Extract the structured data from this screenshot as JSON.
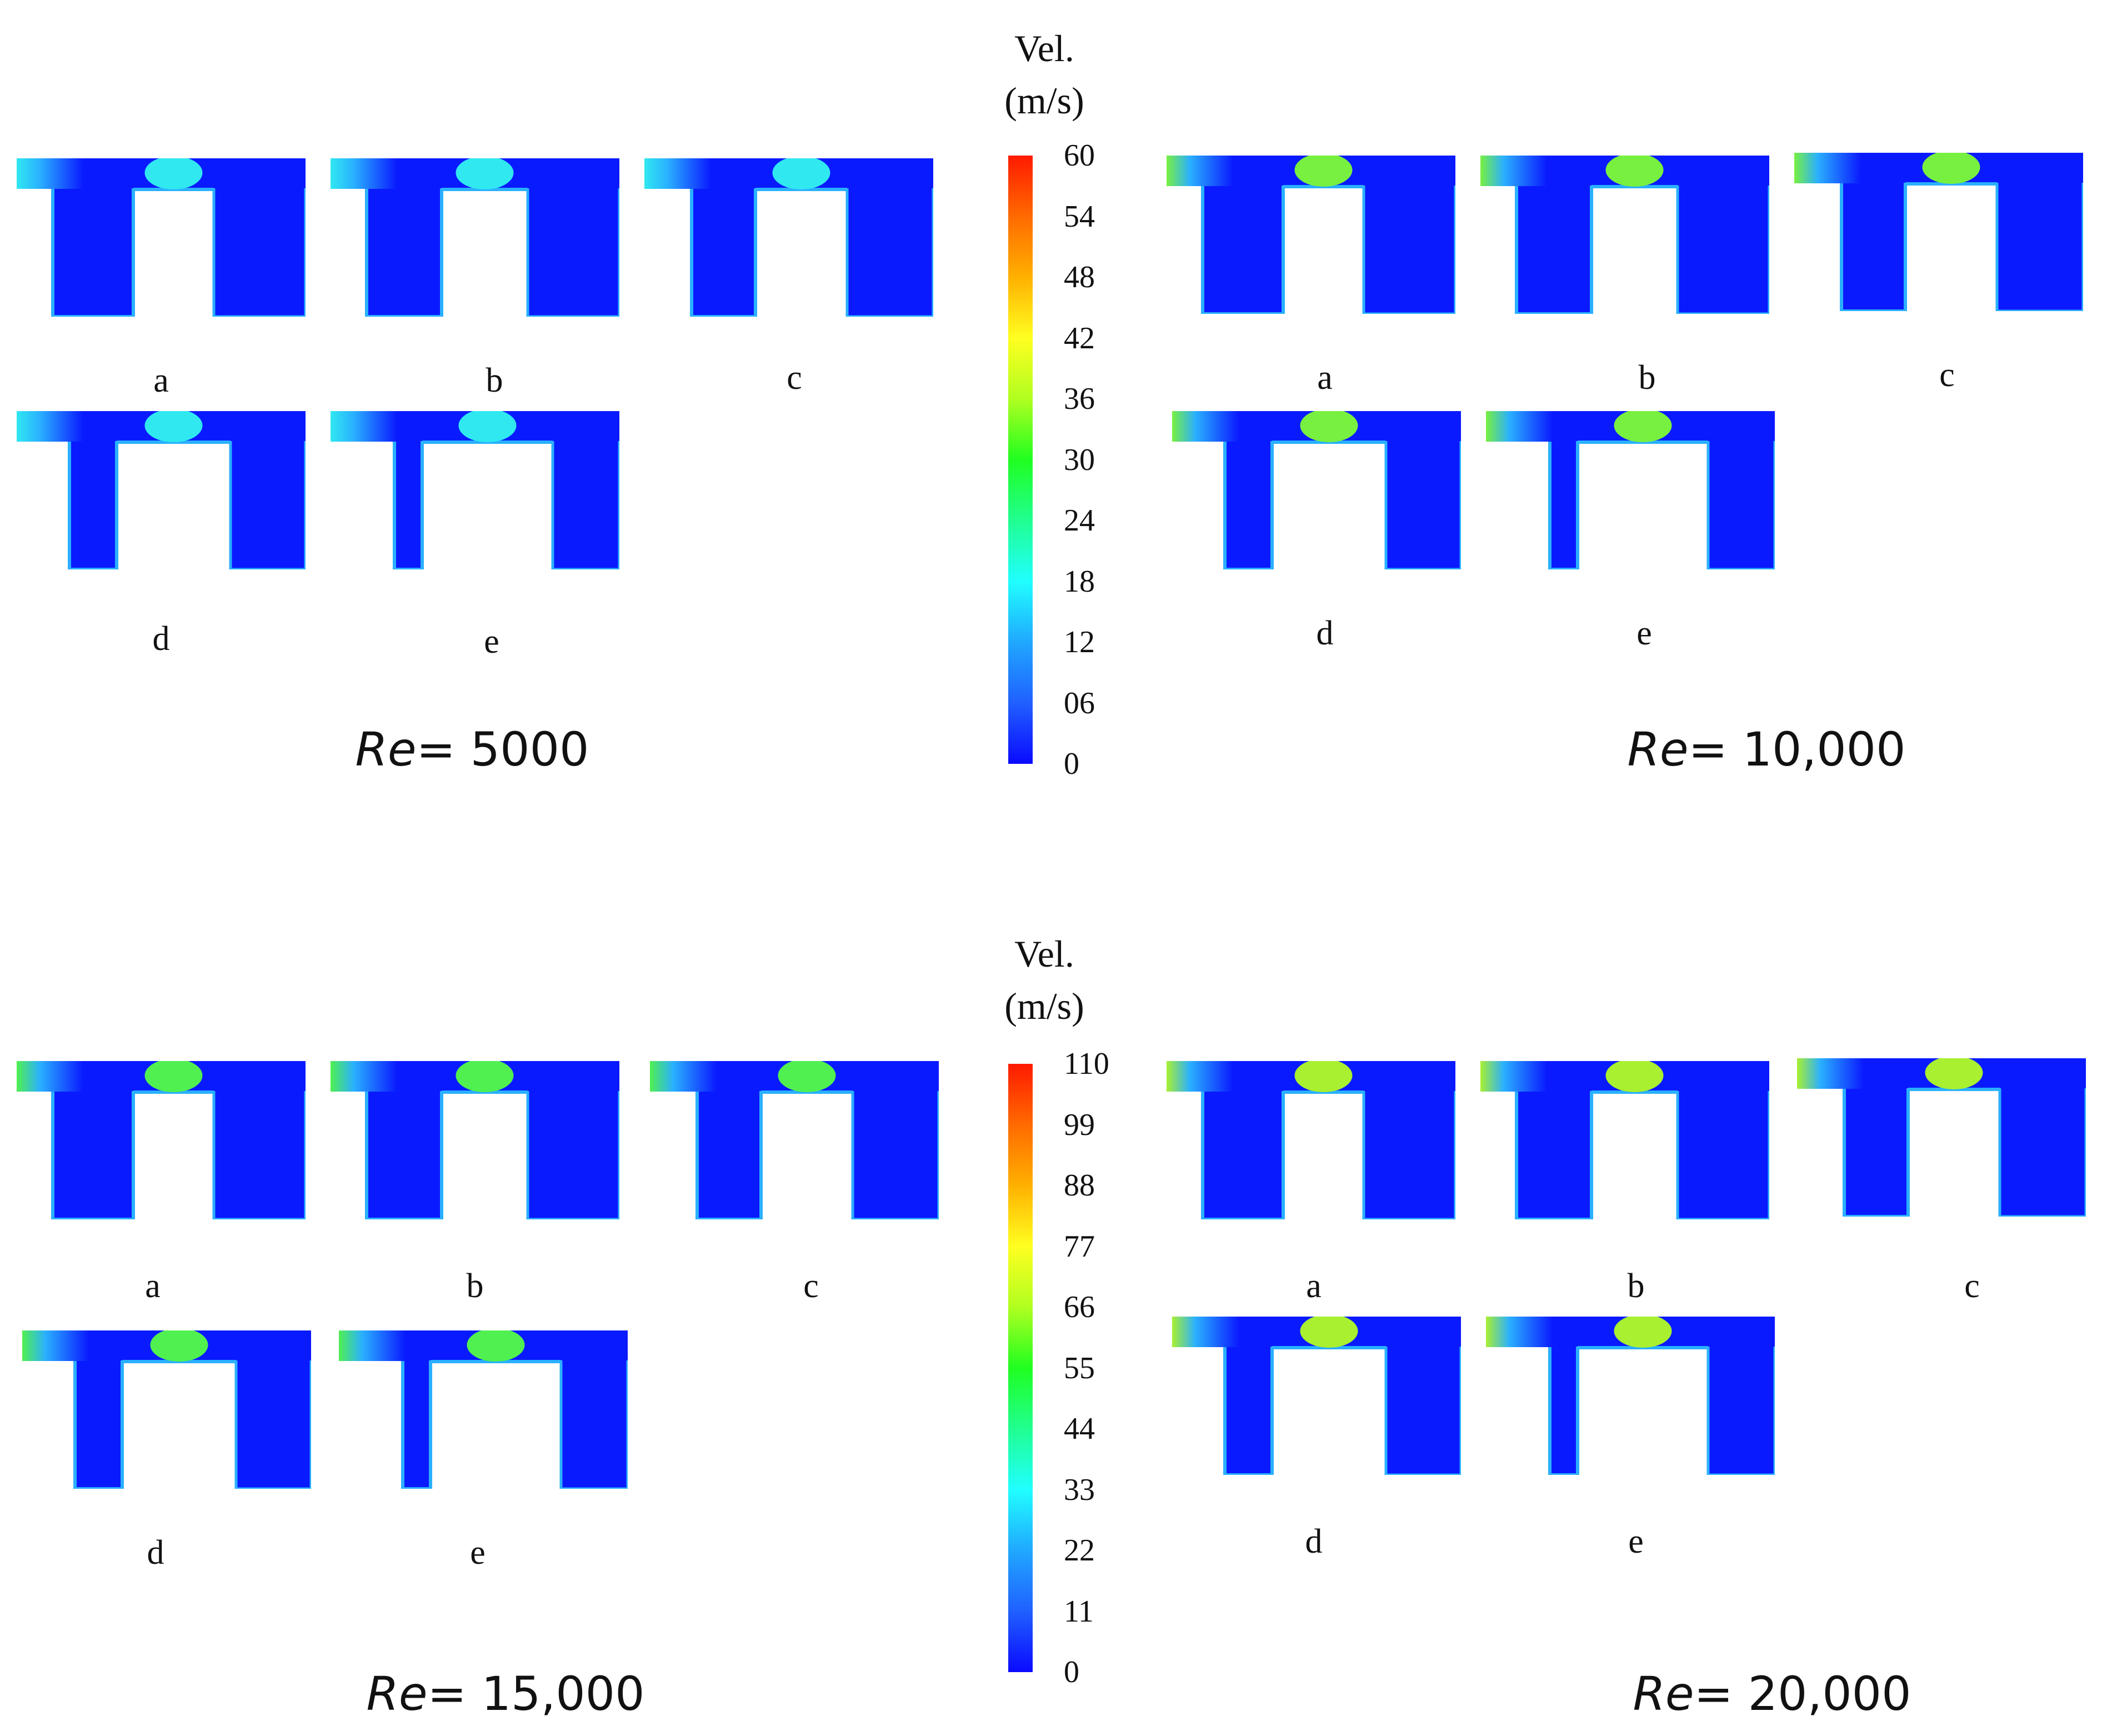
{
  "colorbars": [
    {
      "title_line1": "Vel.",
      "title_line2": "(m/s)",
      "ticks": [
        "60",
        "54",
        "48",
        "42",
        "36",
        "30",
        "24",
        "18",
        "12",
        "06",
        "0"
      ],
      "gradient": [
        "#ff1a00",
        "#ff6a00",
        "#ffb000",
        "#ffff20",
        "#b0ff20",
        "#20ff20",
        "#20ff90",
        "#20ffff",
        "#20a8ff",
        "#2060ff",
        "#0a0aff"
      ]
    },
    {
      "title_line1": "Vel.",
      "title_line2": "(m/s)",
      "ticks": [
        "110",
        "99",
        "88",
        "77",
        "66",
        "55",
        "44",
        "33",
        "22",
        "11",
        "0"
      ],
      "gradient": [
        "#ff1a00",
        "#ff6a00",
        "#ffb000",
        "#ffff20",
        "#b0ff20",
        "#20ff20",
        "#20ff90",
        "#20ffff",
        "#20a8ff",
        "#2060ff",
        "#0a0aff"
      ]
    }
  ],
  "groups": [
    {
      "re_symbol": "Re",
      "re_value": "= 5000",
      "jet_color": "#30e8f0",
      "panels": [
        {
          "label": "a"
        },
        {
          "label": "b"
        },
        {
          "label": "c"
        },
        {
          "label": "d"
        },
        {
          "label": "e"
        }
      ]
    },
    {
      "re_symbol": "Re",
      "re_value": "= 10,000",
      "jet_color": "#78f040",
      "panels": [
        {
          "label": "a"
        },
        {
          "label": "b"
        },
        {
          "label": "c"
        },
        {
          "label": "d"
        },
        {
          "label": "e"
        }
      ]
    },
    {
      "re_symbol": "Re",
      "re_value": "= 15,000",
      "jet_color": "#50f050",
      "panels": [
        {
          "label": "a"
        },
        {
          "label": "b"
        },
        {
          "label": "c"
        },
        {
          "label": "d"
        },
        {
          "label": "e"
        }
      ]
    },
    {
      "re_symbol": "Re",
      "re_value": "= 20,000",
      "jet_color": "#a8f030",
      "panels": [
        {
          "label": "a"
        },
        {
          "label": "b"
        },
        {
          "label": "c"
        },
        {
          "label": "d"
        },
        {
          "label": "e"
        }
      ]
    }
  ],
  "colors": {
    "field": "#0a1aff",
    "wall_layer": "#2ab0ff"
  }
}
